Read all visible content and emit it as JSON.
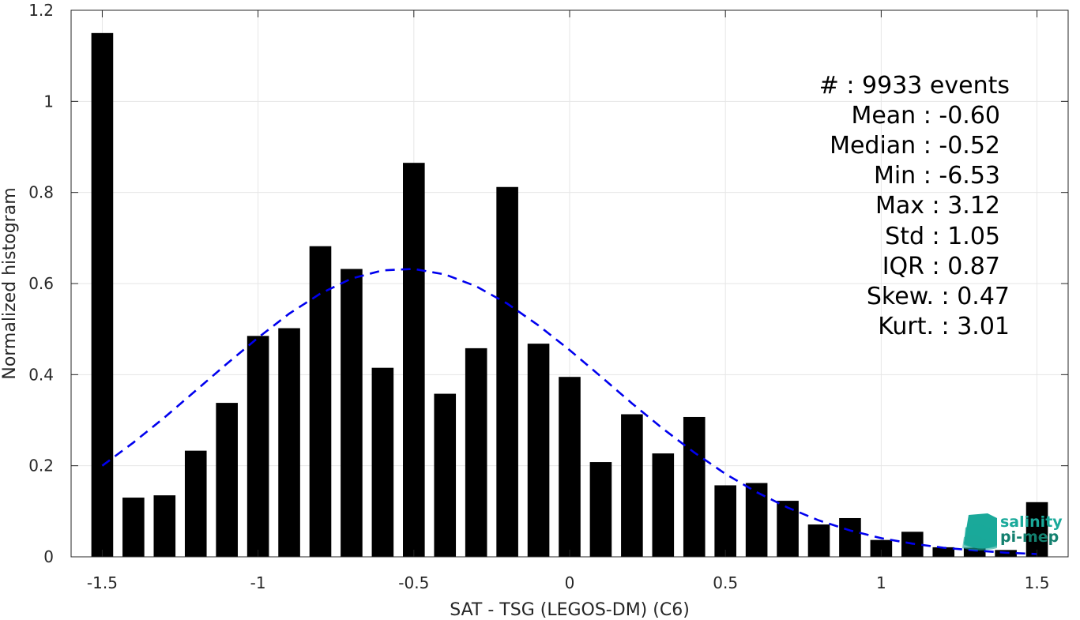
{
  "chart_data": {
    "type": "bar",
    "xlabel": "SAT - TSG (LEGOS-DM) (C6)",
    "ylabel": "Normalized histogram",
    "xlim": [
      -1.6,
      1.6
    ],
    "ylim": [
      0,
      1.2
    ],
    "xticks": [
      -1.5,
      -1,
      -0.5,
      0,
      0.5,
      1,
      1.5
    ],
    "xtick_labels": [
      "-1.5",
      "-1",
      "-0.5",
      "0",
      "0.5",
      "1",
      "1.5"
    ],
    "yticks": [
      0,
      0.2,
      0.4,
      0.6,
      0.8,
      1,
      1.2
    ],
    "ytick_labels": [
      "0",
      "0.2",
      "0.4",
      "0.6",
      "0.8",
      "1",
      "1.2"
    ],
    "grid": true,
    "bar_width": 0.07,
    "series": [
      {
        "type": "bar",
        "color": "#000000",
        "x": [
          -1.5,
          -1.4,
          -1.3,
          -1.2,
          -1.1,
          -1.0,
          -0.9,
          -0.8,
          -0.7,
          -0.6,
          -0.5,
          -0.4,
          -0.3,
          -0.2,
          -0.1,
          0.0,
          0.1,
          0.2,
          0.3,
          0.4,
          0.5,
          0.6,
          0.7,
          0.8,
          0.9,
          1.0,
          1.1,
          1.2,
          1.3,
          1.4,
          1.5
        ],
        "values": [
          1.15,
          0.13,
          0.135,
          0.233,
          0.338,
          0.485,
          0.502,
          0.682,
          0.632,
          0.415,
          0.865,
          0.358,
          0.458,
          0.812,
          0.468,
          0.395,
          0.208,
          0.313,
          0.227,
          0.307,
          0.157,
          0.162,
          0.123,
          0.071,
          0.085,
          0.037,
          0.055,
          0.021,
          0.02,
          0.015,
          0.12
        ]
      },
      {
        "type": "line",
        "style": "dashed",
        "color": "#0000ee",
        "x": [
          -1.5,
          -1.4,
          -1.3,
          -1.2,
          -1.1,
          -1.0,
          -0.9,
          -0.8,
          -0.7,
          -0.6,
          -0.5,
          -0.4,
          -0.3,
          -0.2,
          -0.1,
          0.0,
          0.1,
          0.2,
          0.3,
          0.4,
          0.5,
          0.6,
          0.7,
          0.8,
          0.9,
          1.0,
          1.1,
          1.2,
          1.3,
          1.4,
          1.5
        ],
        "values": [
          0.2,
          0.251,
          0.306,
          0.365,
          0.424,
          0.481,
          0.534,
          0.578,
          0.611,
          0.629,
          0.632,
          0.62,
          0.594,
          0.556,
          0.508,
          0.454,
          0.396,
          0.337,
          0.281,
          0.229,
          0.182,
          0.142,
          0.108,
          0.08,
          0.058,
          0.041,
          0.029,
          0.02,
          0.014,
          0.009,
          0.006
        ]
      }
    ],
    "stats_lines": [
      "#  : 9933 events",
      "Mean : -0.60",
      "Median : -0.52",
      "Min : -6.53",
      "Max : 3.12",
      "Std : 1.05",
      "IQR : 0.87",
      "Skew. : 0.47",
      "Kurt. : 3.01"
    ]
  },
  "logo": {
    "line1": "salinity",
    "line2": "pi-mep",
    "color": "#1aa99a",
    "color_dark": "#13806f"
  }
}
